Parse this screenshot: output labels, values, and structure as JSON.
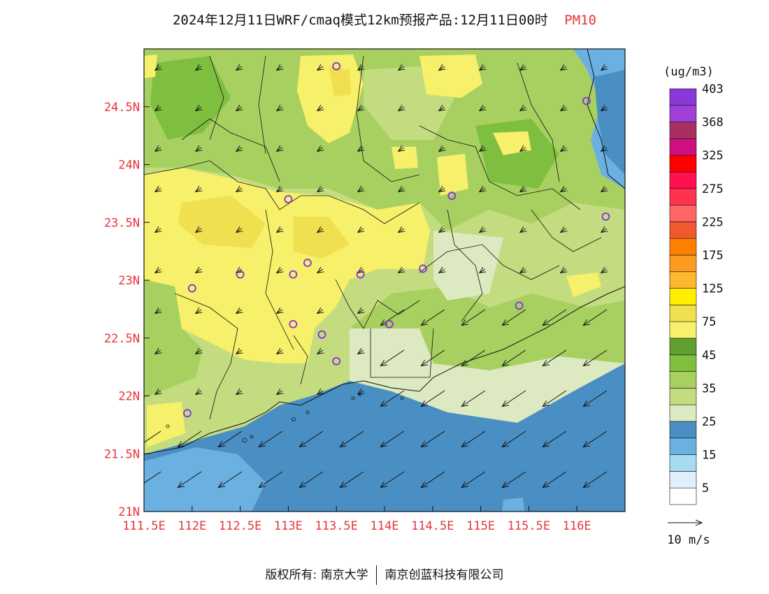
{
  "header": {
    "title": "2024年12月11日WRF/cmaq模式12km预报产品:12月11日00时",
    "variable": "PM10"
  },
  "map": {
    "lon_range": [
      111.5,
      116.5
    ],
    "lat_range": [
      21.0,
      25.0
    ],
    "lon_ticks": [
      "111.5E",
      "112E",
      "112.5E",
      "113E",
      "113.5E",
      "114E",
      "114.5E",
      "115E",
      "115.5E",
      "116E"
    ],
    "lat_ticks": [
      "21N",
      "21.5N",
      "22N",
      "22.5N",
      "23N",
      "23.5N",
      "24N",
      "24.5N"
    ],
    "stations": [
      {
        "lon": 113.5,
        "lat": 24.85
      },
      {
        "lon": 116.1,
        "lat": 24.55
      },
      {
        "lon": 113.0,
        "lat": 23.7
      },
      {
        "lon": 114.7,
        "lat": 23.73
      },
      {
        "lon": 116.3,
        "lat": 23.55
      },
      {
        "lon": 113.2,
        "lat": 23.15
      },
      {
        "lon": 113.05,
        "lat": 23.05
      },
      {
        "lon": 112.5,
        "lat": 23.05
      },
      {
        "lon": 112.0,
        "lat": 22.93
      },
      {
        "lon": 113.75,
        "lat": 23.05
      },
      {
        "lon": 114.4,
        "lat": 23.1
      },
      {
        "lon": 115.4,
        "lat": 22.78
      },
      {
        "lon": 113.05,
        "lat": 22.62
      },
      {
        "lon": 113.35,
        "lat": 22.53
      },
      {
        "lon": 114.05,
        "lat": 22.62
      },
      {
        "lon": 113.5,
        "lat": 22.3
      },
      {
        "lon": 111.95,
        "lat": 21.85
      }
    ]
  },
  "legend": {
    "unit": "(ug/m3)",
    "labels": [
      "5",
      "15",
      "25",
      "35",
      "45",
      "75",
      "125",
      "175",
      "225",
      "275",
      "325",
      "368",
      "403"
    ],
    "colors": [
      "#ffffff",
      "#dff0fa",
      "#a6dcf3",
      "#6ab0e0",
      "#4a8fc4",
      "#dde9c0",
      "#c4dc80",
      "#a8d060",
      "#7fbf40",
      "#5fa030",
      "#f6f06a",
      "#f0e050",
      "#ffee00",
      "#fdb830",
      "#fd9a20",
      "#ff7f00",
      "#f05830",
      "#ff6666",
      "#ff3350",
      "#ff1050",
      "#ff0000",
      "#d01080",
      "#a83060",
      "#a040d8",
      "#8a38d8"
    ],
    "wind_ref_label": "10 m/s"
  },
  "footer": {
    "copyright_label": "版权所有:",
    "org1": "南京大学",
    "org2": "南京创蓝科技有限公司"
  }
}
